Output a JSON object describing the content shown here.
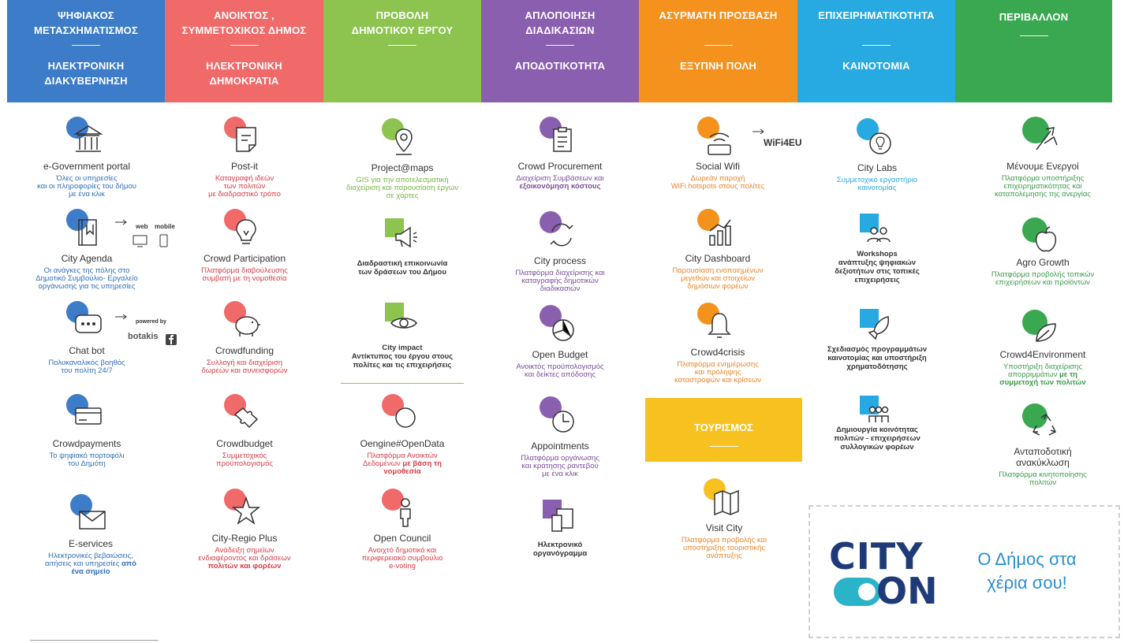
{
  "headers": [
    {
      "top": "ΨΗΦΙΑΚΟΣ\nΜΕΤΑΣΧΗΜΑΤΙΣΜΟΣ",
      "bottom": "ΗΛΕΚΤΡΟΝΙΚΗ\nΔΙΑΚΥΒΕΡΝΗΣΗ",
      "color": "#3d7cc9"
    },
    {
      "top": "ΑΝΟΙΚΤΟΣ ,\nΣΥΜΜΕΤΟΧΙΚΟΣ ΔΗΜΟΣ",
      "bottom": "ΗΛΕΚΤΡΟΝΙΚΗ\nΔΗΜΟΚΡΑΤΙΑ",
      "color": "#f06a6a"
    },
    {
      "top": "ΠΡΟΒΟΛΗ\nΔΗΜΟΤΙΚΟΥ ΕΡΓΟΥ",
      "bottom": "",
      "color": "#8cc44f"
    },
    {
      "top": "ΑΠΛΟΠΟΙΗΣΗ\nΔΙΑΔΙΚΑΣΙΩΝ",
      "bottom": "ΑΠΟΔΟΤΙΚΟΤΗΤΑ",
      "color": "#8a5fb0"
    },
    {
      "top": "ΑΣΥΡΜΑΤΗ ΠΡΟΣΒΑΣΗ",
      "bottom": "ΕΞΥΠΝΗ ΠΟΛΗ",
      "color": "#f5921e"
    },
    {
      "top": "ΕΠΙΧΕΙΡΗΜΑΤΙΚΟΤΗΤΑ",
      "bottom": "ΚΑΙΝΟΤΟΜΙΑ",
      "color": "#26aae1"
    },
    {
      "top": "ΠΕΡΙΒΑΛΛΟΝ",
      "bottom": "",
      "color": "#3aa851"
    }
  ],
  "col1": [
    {
      "title": "e-Government portal",
      "desc": "Όλες οι υπηρεσίες\nκαι οι πληροφορίες του δήμου\nμε ένα κλικ",
      "icon": "bank-icon"
    },
    {
      "title": "City Agenda",
      "desc": "Οι ανάγκες της πόλης στο\nΔημοτικό Συμβούλιο- Εργαλείο\nοργάνωσης για τις υπηρεσίες",
      "icon": "book-icon",
      "aside1": "web",
      "aside2": "mobile"
    },
    {
      "title": "Chat bot",
      "desc": "Πολυκαναλικός βοηθός\nτου πολίτη 24/7",
      "icon": "chat-icon",
      "aside1": "powered by",
      "aside2": "botakis"
    },
    {
      "title": "Crowdpayments",
      "desc": "Το ψηφιακό πορτοφόλι\nτου Δημότη",
      "icon": "card-icon"
    },
    {
      "title": "E-services",
      "desc": "Ηλεκτρονικές βεβαιώσεις,\nαιτήσεις και υπηρεσίες ",
      "desc_hl": "από\nένα σημείο",
      "icon": "envelope-icon"
    }
  ],
  "col2": [
    {
      "title": "Post-it",
      "desc": "Καταγραφή ιδεών\nτων πολιτών\nμε διαδραστικό τρόπο",
      "icon": "note-icon"
    },
    {
      "title": "Crowd Participation",
      "desc": "Πλατφόρμα διαβούλευσης\nσυμβατή με τη νομοθεσία",
      "icon": "bulb-icon"
    },
    {
      "title": "Crowdfunding",
      "desc": "Συλλογή και διαχείριση\nδωρεών και συνεισφορών",
      "icon": "piggy-icon"
    },
    {
      "title": "Crowdbudget",
      "desc": "Συμμετοχικός\nπροϋπολογισμός",
      "icon": "puzzle-icon"
    },
    {
      "title": "City-Regio Plus",
      "desc": "Ανάδειξη σημείων\nενδιαφέροντος και δράσεων\n",
      "desc_hl": "πολιτών και φορέων",
      "icon": "star-icon"
    }
  ],
  "col3": [
    {
      "title": "Project@maps",
      "desc": "GIS για την αποτελεσματική\nδιαχείριση και παρουσίαση έργων\nσε χάρτες",
      "icon": "pin-icon"
    },
    {
      "title": "Διαδραστική επικοινωνία\nτων δράσεων του Δήμου",
      "desc": "",
      "icon": "megaphone-icon"
    },
    {
      "title": "City impact\nΑντίκτυπος του έργου στους\nπολίτες και τις επιχειρήσεις",
      "desc": "",
      "icon": "eye-icon"
    },
    {
      "title": "Oengine#OpenData",
      "desc": "Πλατφόρμα Ανοικτών\nΔεδομένων ",
      "desc_hl": "με βάση τη\nνομοθεσία",
      "icon": "circle-icon"
    },
    {
      "title": "Open Council",
      "desc": "Ανοιχτό δημοτικό και\nπεριφερειακό συμβούλιο\ne-voting",
      "icon": "person-icon"
    }
  ],
  "col4": [
    {
      "title": "Crowd Procurement",
      "desc": "Διαχείριση Συμβάσεων και\n",
      "desc_hl": "εξοικονόμηση κόστους",
      "icon": "clipboard-icon"
    },
    {
      "title": "City process",
      "desc": "Πλατφόρμα διαχείρισης και\nκαταγραφής δημοτικών\nδιαδικασιών",
      "icon": "cycle-icon"
    },
    {
      "title": "Open Budget",
      "desc": "Ανοικτός προϋπολογισμός\nκαι δείκτες απόδοσης",
      "icon": "piechart-icon"
    },
    {
      "title": "Appointments",
      "desc": "Πλατφόρμα οργάνωσης\nκαι κράτησης ραντεβού\nμε ένα κλικ",
      "icon": "clock-icon"
    },
    {
      "title": "Ηλεκτρονικό\nοργανόγραμμα",
      "desc": "",
      "icon": "devices-icon"
    }
  ],
  "col5": [
    {
      "title": "Social Wifi",
      "desc": "Δωρεάν παροχή\nWiFi hotspots στους πολίτες",
      "icon": "wifi-icon",
      "aside1": "WiFi4EU"
    },
    {
      "title": "City Dashboard",
      "desc": "Παρουσίαση ενοποιημένων\nμεγεθών και στοιχείων\nδημόσιων φορέων",
      "icon": "dashboard-icon"
    },
    {
      "title": "Crowd4crisis",
      "desc": "Πλατφόρμα ενημέρωσης\nκαι πρόληψης\nκαταστροφών και κρίσεων",
      "icon": "bell-icon"
    },
    {
      "title": "Visit City",
      "desc": "Πλατφόρμα προβολής και\nυποστήριξης τουριστικής\nανάπτυξης",
      "icon": "map-icon"
    }
  ],
  "tourism": "ΤΟΥΡΙΣΜΟΣ",
  "col6": [
    {
      "title": "City Labs",
      "desc": "Συμμετοχικό εργαστήριο\nκαινοτομίας",
      "icon": "idea-icon"
    },
    {
      "title": "Workshops\nανάπτυξης ψηφιακών\nδεξιοτήτων στις τοπικές\nεπιχειρήσεις",
      "desc": "",
      "icon": "group-icon"
    },
    {
      "title": "Σχεδιασμός προγραμμάτων\nκαινοτομίας και υποστήριξη\nχρηματοδότησης",
      "desc": "",
      "icon": "rocket-icon"
    },
    {
      "title": "Δημιουργία κοινότητας\nπολιτών - επιχειρήσεων\nσυλλογικών φορέων",
      "desc": "",
      "icon": "people-icon"
    }
  ],
  "col7": [
    {
      "title": "Μένουμε Ενεργοί",
      "desc": "Πλατφόρμα υποστήριξης\nεπιχειρηματικότητας και\nκαταπολέμησης της ανεργίας",
      "icon": "tools-icon"
    },
    {
      "title": "Agro Growth",
      "desc": "Πλατφόρμα προβολής τοπικών\nεπιχειρήσεων και προϊόντων",
      "icon": "apple-icon"
    },
    {
      "title": "Crowd4Environment",
      "desc": "Υποστήριξη διαχείρισης\nαπορριμμάτων ",
      "desc_hl": "με τη\nσυμμετοχή των πολιτών",
      "icon": "leaf-icon"
    },
    {
      "title": "Ανταποδοτική\nανακύκλωση",
      "desc": "Πλατφόρμα κινητοποίησης\nπολιτών",
      "icon": "recycle-icon"
    }
  ],
  "cityon": {
    "logo_top": "CITY",
    "logo_bottom": "ON",
    "slogan": "Ο Δήμος στα\nχέρια σου!"
  },
  "colors": {
    "blue": "#3d7cc9",
    "red": "#f06a6a",
    "green": "#8cc44f",
    "purple": "#8a5fb0",
    "orange": "#f5921e",
    "cyan": "#26aae1",
    "dkgreen": "#3aa851",
    "yellow": "#f7c220"
  }
}
